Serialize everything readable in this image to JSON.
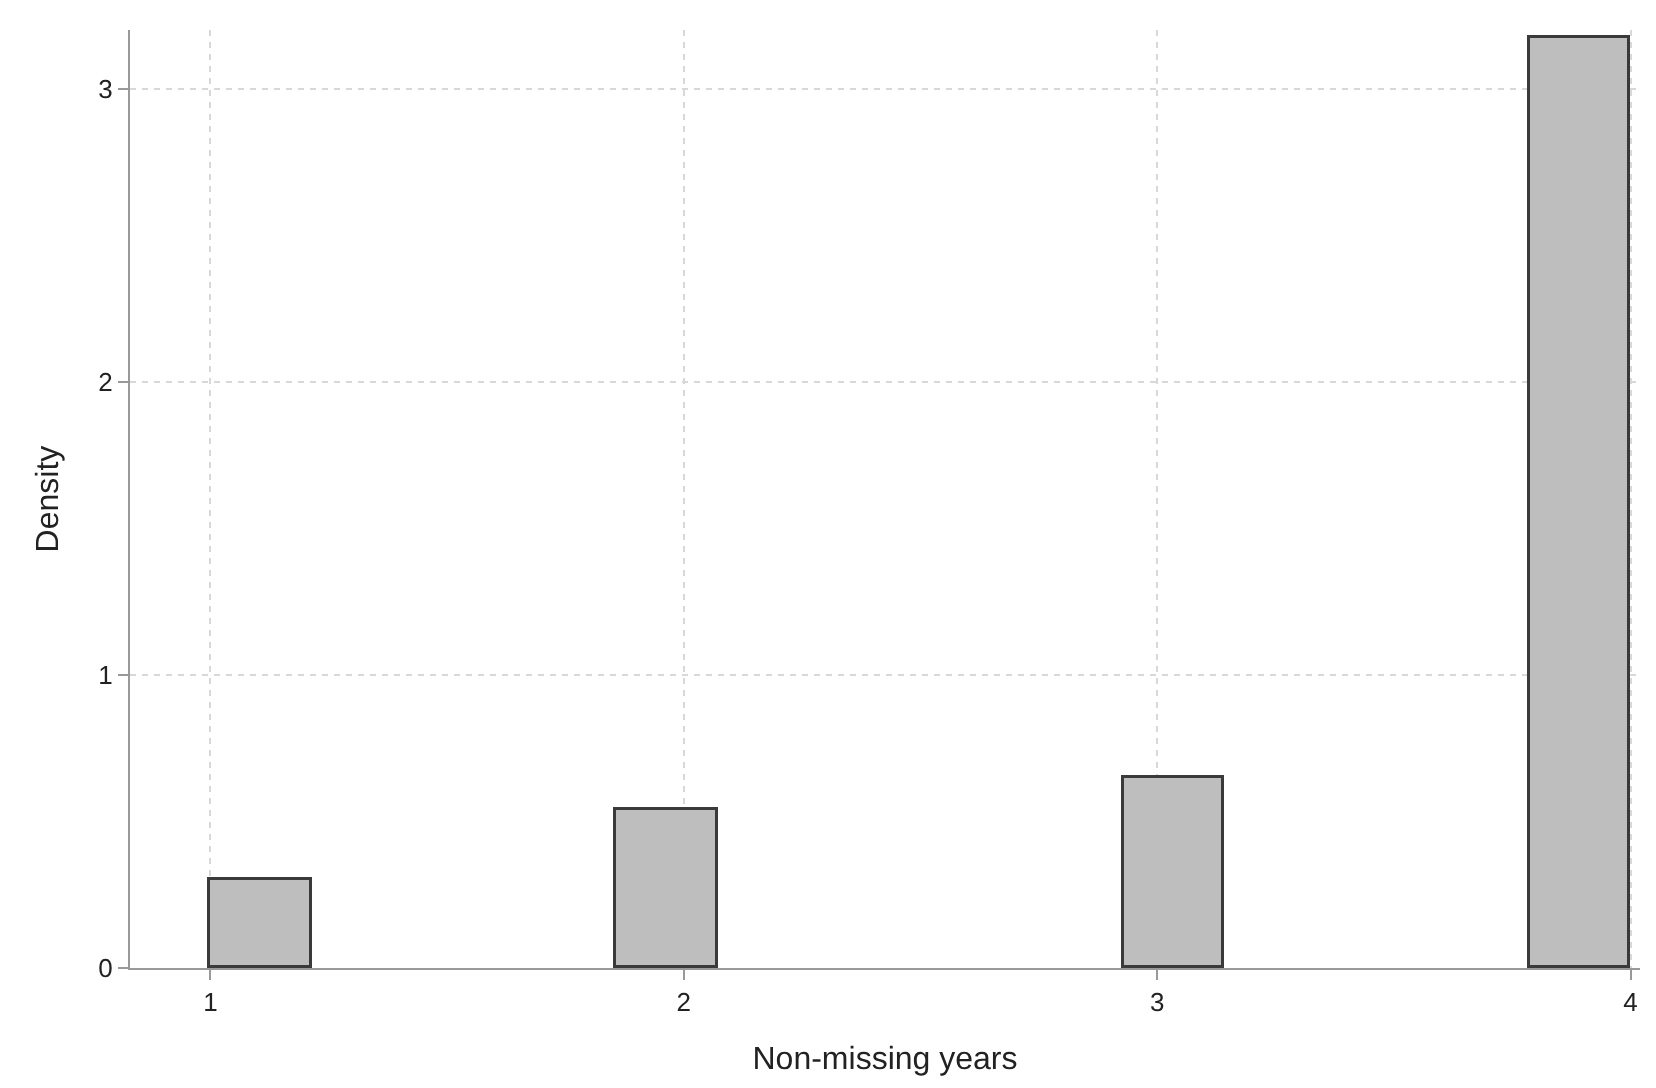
{
  "chart_data": {
    "type": "histogram",
    "xlabel": "Non-missing years",
    "ylabel": "Density",
    "bins": [
      1,
      1.214,
      1.857,
      2.071,
      2.929,
      3.143,
      3.786,
      4
    ],
    "values": [
      0.3,
      0,
      0.54,
      0,
      0.65,
      0,
      3.17
    ],
    "color": "#bebebe",
    "xlim": [
      0.83,
      4.02
    ],
    "xticks": [
      1,
      2,
      3,
      4
    ],
    "ylim": [
      0,
      3.2
    ],
    "yticks": [
      0,
      1,
      2,
      3
    ],
    "grid": true
  }
}
